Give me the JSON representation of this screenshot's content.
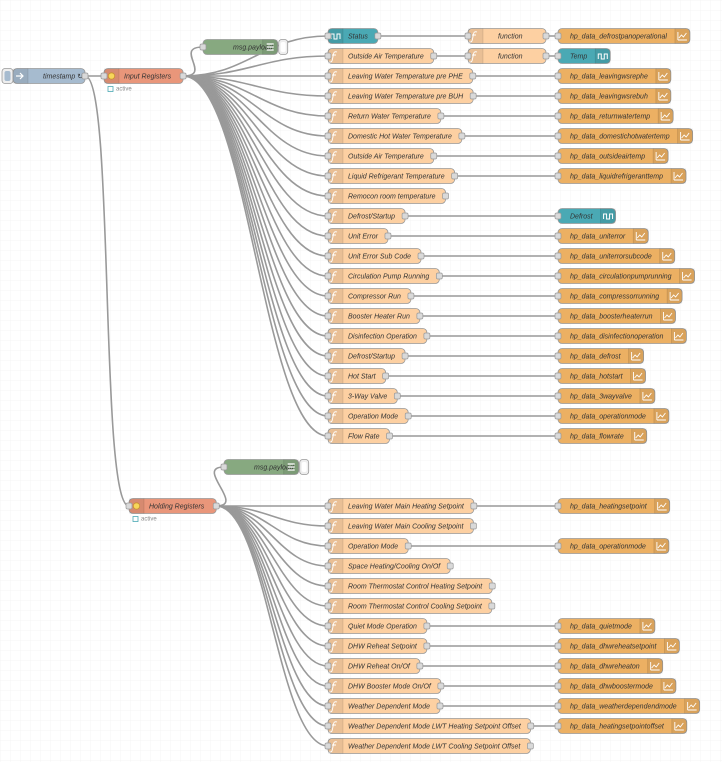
{
  "colors": {
    "function": "#fdd0a2",
    "output": "#ecb063",
    "modbus": "#e9967a",
    "inject": "#a6bbcf",
    "debug": "#87a980",
    "wire": "#999999"
  },
  "inject": {
    "label": "timestamp ↻"
  },
  "sections": [
    {
      "label": "Input Registers",
      "status": "active",
      "debug": "msg.payload",
      "rows": [
        {
          "label": "Status",
          "color": "#4aa9b4",
          "middle": "function",
          "output": {
            "label": "hp_data_defrostpanoperational"
          }
        },
        {
          "label": "Outside Air Temperature",
          "middle": "function",
          "output": {
            "label": "Temp",
            "color": "#4aa9b4"
          }
        },
        {
          "label": "Leaving Water Temperature pre PHE",
          "output": {
            "label": "hp_data_leavingwsrephe"
          }
        },
        {
          "label": "Leaving Water Temperature pre BUH",
          "output": {
            "label": "hp_data_leavingwsrebuh"
          }
        },
        {
          "label": "Return Water Temperature",
          "output": {
            "label": "hp_data_returnwatertemp"
          }
        },
        {
          "label": "Domestic Hot Water Temperature",
          "output": {
            "label": "hp_data_domestichotwatertemp"
          }
        },
        {
          "label": "Outside Air Temperature",
          "output": {
            "label": "hp_data_outsideairtemp"
          }
        },
        {
          "label": "Liquid Refrigerant Temperature",
          "output": {
            "label": "hp_data_liquidrefrigeranttemp"
          }
        },
        {
          "label": "Remocon room temperature"
        },
        {
          "label": "Defrost/Startup",
          "output": {
            "label": "Defrost",
            "color": "#4aa9b4"
          }
        },
        {
          "label": "Unit Error",
          "output": {
            "label": "hp_data_uniterror"
          }
        },
        {
          "label": "Unit Error Sub Code",
          "output": {
            "label": "hp_data_uniterrorsubcode"
          }
        },
        {
          "label": "Circulation Pump Running",
          "output": {
            "label": "hp_data_circulationpumprunning"
          }
        },
        {
          "label": "Compressor Run",
          "output": {
            "label": "hp_data_compressorrunning"
          }
        },
        {
          "label": "Booster Heater Run",
          "output": {
            "label": "hp_data_boosterheaterrun"
          }
        },
        {
          "label": "Disinfection Operation",
          "output": {
            "label": "hp_data_disinfectionoperation"
          }
        },
        {
          "label": "Defrost/Startup",
          "output": {
            "label": "hp_data_defrost"
          }
        },
        {
          "label": "Hot Start",
          "output": {
            "label": "hp_data_hotstart"
          }
        },
        {
          "label": "3-Way Valve",
          "output": {
            "label": "hp_data_3wayvalve"
          }
        },
        {
          "label": "Operation Mode",
          "output": {
            "label": "hp_data_operationmode"
          }
        },
        {
          "label": "Flow Rate",
          "output": {
            "label": "hp_data_flowrate"
          }
        }
      ]
    },
    {
      "label": "Holding Registers",
      "status": "active",
      "debug": "msg.payload",
      "rows": [
        {
          "label": "Leaving Water Main Heating Setpoint",
          "output": {
            "label": "hp_data_heatingsetpoint"
          }
        },
        {
          "label": "Leaving Water Main Cooling Setpoint"
        },
        {
          "label": "Operation Mode",
          "output": {
            "label": "hp_data_operationmode"
          }
        },
        {
          "label": "Space Heating/Cooling On/Of"
        },
        {
          "label": "Room Thermostat Control Heating Setpoint"
        },
        {
          "label": "Room Thermostat Control Cooling Setpoint"
        },
        {
          "label": "Quiet Mode Operation",
          "output": {
            "label": "hp_data_quietmode"
          }
        },
        {
          "label": "DHW Reheat Setpoint",
          "output": {
            "label": "hp_data_dhwreheatsetpoint"
          }
        },
        {
          "label": "DHW Reheat On/Of",
          "output": {
            "label": "hp_data_dhwreheaton"
          }
        },
        {
          "label": "DHW Booster Mode On/Of",
          "output": {
            "label": "hp_data_dhwboostermode"
          }
        },
        {
          "label": "Weather Dependent Mode",
          "output": {
            "label": "hp_data_weatherdependendmode"
          }
        },
        {
          "label": "Weather Dependent Mode LWT Heating Setpoint Offset",
          "output": {
            "label": "hp_data_heatingsetpointoffset"
          }
        },
        {
          "label": "Weather Dependent Mode LWT Cooling Setpoint Offset"
        }
      ]
    }
  ]
}
